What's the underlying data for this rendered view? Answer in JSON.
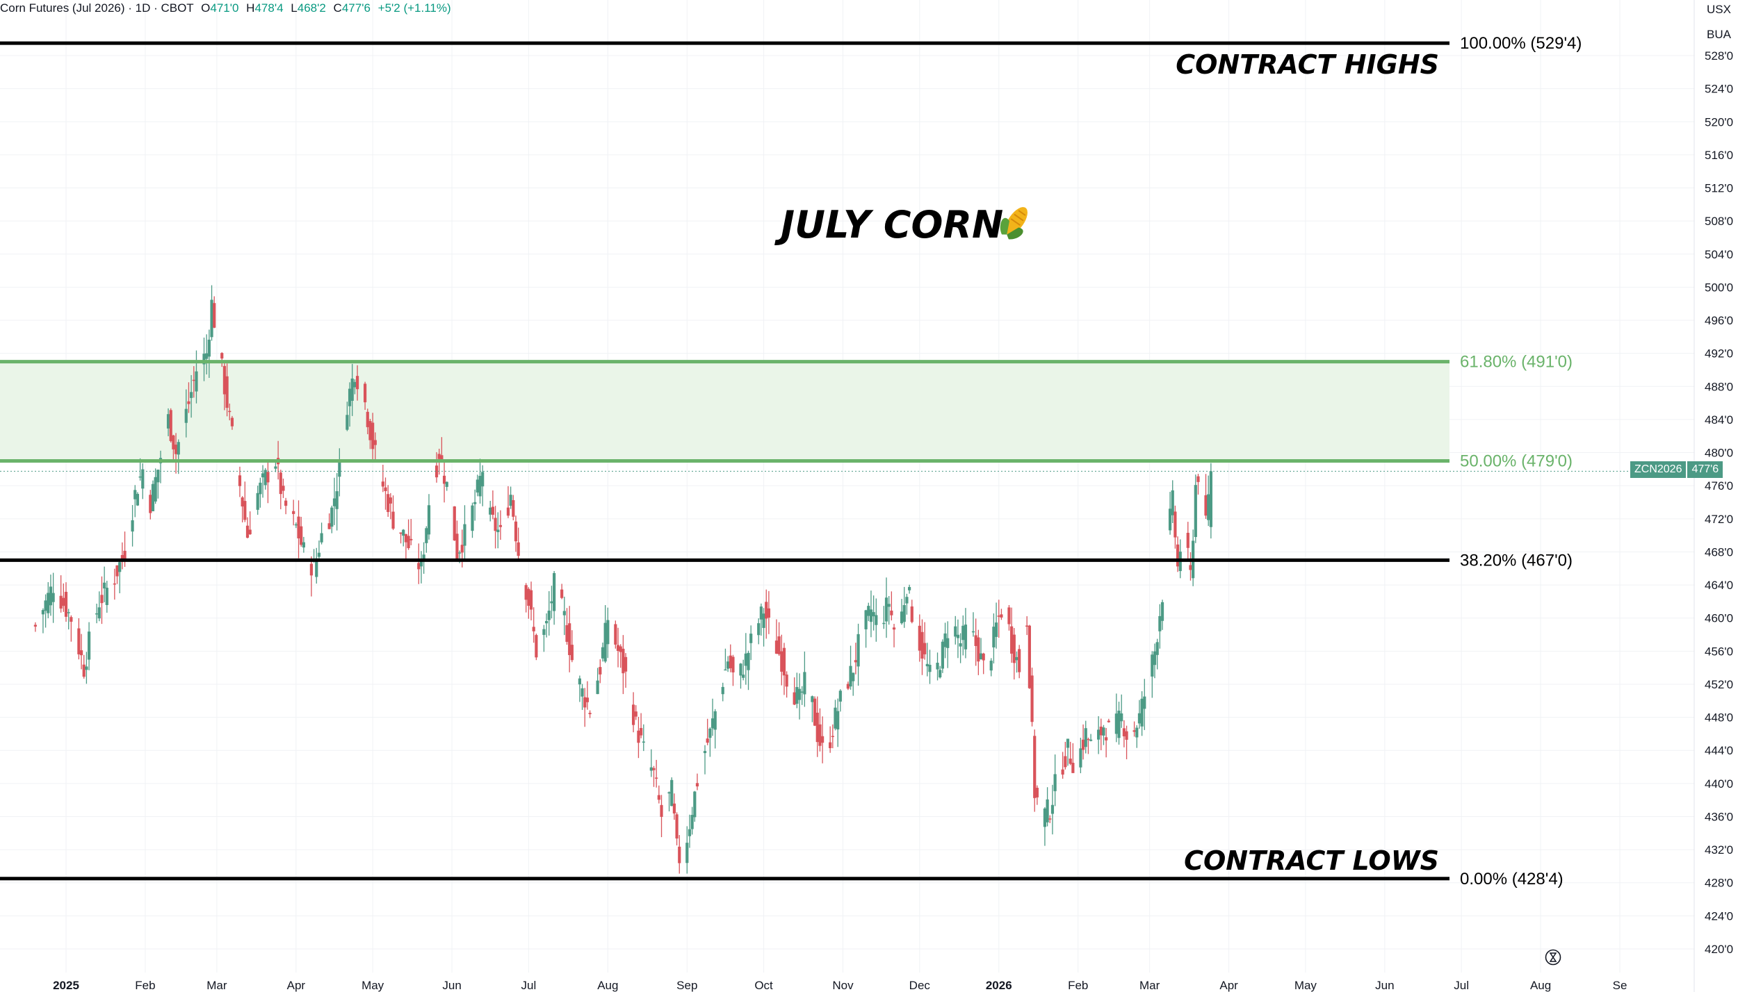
{
  "header": {
    "title": "Corn Futures (Jul 2026) · 1D · CBOT",
    "open_label": "O",
    "open": "471'0",
    "high_label": "H",
    "high": "478'4",
    "low_label": "L",
    "low": "468'2",
    "close_label": "C",
    "close": "477'6",
    "change": "+5'2 (+1.11%)"
  },
  "price_axis_units": [
    "USX",
    "BUA"
  ],
  "current_badge": {
    "symbol": "ZCN2026",
    "price": "477'6",
    "color": "#4c9a85"
  },
  "annotations": {
    "main_title": "JULY CORN",
    "main_title_icon": "corn-icon",
    "contract_highs": "CONTRACT HIGHS",
    "contract_lows": "CONTRACT LOWS"
  },
  "colors": {
    "up": "#4c9a85",
    "down": "#d9535a",
    "fib_green": "#6ab36a",
    "zone_fill": "#eaf5e8",
    "line_black": "#000000"
  },
  "chart_data": {
    "type": "candlestick",
    "y_unit": "cents/bushel",
    "ylim": [
      418,
      530
    ],
    "y_ticks": [
      "420'0",
      "424'0",
      "428'0",
      "432'0",
      "436'0",
      "440'0",
      "444'0",
      "448'0",
      "452'0",
      "456'0",
      "460'0",
      "464'0",
      "468'0",
      "472'0",
      "476'0",
      "480'0",
      "484'0",
      "488'0",
      "492'0",
      "496'0",
      "500'0",
      "504'0",
      "508'0",
      "512'0",
      "516'0",
      "520'0",
      "524'0",
      "528'0"
    ],
    "y_tick_values": [
      420,
      424,
      428,
      432,
      436,
      440,
      444,
      448,
      452,
      456,
      460,
      464,
      468,
      472,
      476,
      480,
      484,
      488,
      492,
      496,
      500,
      504,
      508,
      512,
      516,
      520,
      524,
      528
    ],
    "x_ticks": [
      "2025",
      "Feb",
      "Mar",
      "Apr",
      "May",
      "Jun",
      "Jul",
      "Aug",
      "Sep",
      "Oct",
      "Nov",
      "Dec",
      "2026",
      "Feb",
      "Mar",
      "Apr",
      "May",
      "Jun",
      "Jul",
      "Aug",
      "Se"
    ],
    "x_tick_dates": [
      "2025-01-01",
      "2025-02-01",
      "2025-03-01",
      "2025-04-01",
      "2025-05-01",
      "2025-06-01",
      "2025-07-01",
      "2025-08-01",
      "2025-09-01",
      "2025-10-01",
      "2025-11-01",
      "2025-12-01",
      "2026-01-01",
      "2026-02-01",
      "2026-03-01",
      "2026-04-01",
      "2026-05-01",
      "2026-06-01",
      "2026-07-01",
      "2026-08-01",
      "2026-09-01"
    ],
    "bold_x_ticks": [
      "2025",
      "2026"
    ],
    "fib_levels": [
      {
        "label": "100.00% (529'4)",
        "value": 529.5,
        "style": "black"
      },
      {
        "label": "61.80% (491'0)",
        "value": 491.0,
        "style": "green"
      },
      {
        "label": "50.00% (479'0)",
        "value": 479.0,
        "style": "green"
      },
      {
        "label": "38.20% (467'0)",
        "value": 467.0,
        "style": "black"
      },
      {
        "label": "0.00% (428'4)",
        "value": 428.5,
        "style": "black"
      }
    ],
    "shaded_zone": [
      479.0,
      491.0
    ],
    "last_price": 477.75,
    "price_path": [
      [
        "2024-12-20",
        459
      ],
      [
        "2024-12-27",
        464
      ],
      [
        "2025-01-03",
        460
      ],
      [
        "2025-01-08",
        454
      ],
      [
        "2025-01-10",
        457
      ],
      [
        "2025-01-14",
        462
      ],
      [
        "2025-01-20",
        465
      ],
      [
        "2025-01-24",
        468
      ],
      [
        "2025-01-28",
        475
      ],
      [
        "2025-01-31",
        478
      ],
      [
        "2025-02-03",
        474
      ],
      [
        "2025-02-06",
        478
      ],
      [
        "2025-02-10",
        484
      ],
      [
        "2025-02-13",
        480
      ],
      [
        "2025-02-18",
        486
      ],
      [
        "2025-02-21",
        490
      ],
      [
        "2025-02-25",
        492
      ],
      [
        "2025-02-27",
        498
      ],
      [
        "2025-03-03",
        490
      ],
      [
        "2025-03-06",
        484
      ],
      [
        "2025-03-10",
        476
      ],
      [
        "2025-03-13",
        470
      ],
      [
        "2025-03-17",
        475
      ],
      [
        "2025-03-20",
        477
      ],
      [
        "2025-03-24",
        479
      ],
      [
        "2025-03-27",
        474
      ],
      [
        "2025-04-01",
        471
      ],
      [
        "2025-04-04",
        468
      ],
      [
        "2025-04-08",
        466
      ],
      [
        "2025-04-11",
        470
      ],
      [
        "2025-04-15",
        473
      ],
      [
        "2025-04-18",
        478
      ],
      [
        "2025-04-21",
        486
      ],
      [
        "2025-04-24",
        490
      ],
      [
        "2025-04-28",
        486
      ],
      [
        "2025-05-01",
        481
      ],
      [
        "2025-05-05",
        476
      ],
      [
        "2025-05-09",
        472
      ],
      [
        "2025-05-13",
        470
      ],
      [
        "2025-05-16",
        468
      ],
      [
        "2025-05-20",
        466
      ],
      [
        "2025-05-23",
        474
      ],
      [
        "2025-05-27",
        480
      ],
      [
        "2025-05-30",
        476
      ],
      [
        "2025-06-03",
        468
      ],
      [
        "2025-06-06",
        470
      ],
      [
        "2025-06-10",
        474
      ],
      [
        "2025-06-13",
        478
      ],
      [
        "2025-06-16",
        472
      ],
      [
        "2025-06-20",
        470
      ],
      [
        "2025-06-24",
        475
      ],
      [
        "2025-06-27",
        468
      ],
      [
        "2025-07-01",
        462
      ],
      [
        "2025-07-04",
        456
      ],
      [
        "2025-07-08",
        459
      ],
      [
        "2025-07-11",
        464
      ],
      [
        "2025-07-15",
        460
      ],
      [
        "2025-07-18",
        455
      ],
      [
        "2025-07-22",
        451
      ],
      [
        "2025-07-25",
        449
      ],
      [
        "2025-07-29",
        454
      ],
      [
        "2025-08-01",
        460
      ],
      [
        "2025-08-05",
        456
      ],
      [
        "2025-08-08",
        453
      ],
      [
        "2025-08-12",
        447
      ],
      [
        "2025-08-15",
        444
      ],
      [
        "2025-08-19",
        441
      ],
      [
        "2025-08-22",
        436
      ],
      [
        "2025-08-26",
        439
      ],
      [
        "2025-08-28",
        432
      ],
      [
        "2025-08-30",
        430
      ],
      [
        "2025-09-03",
        437
      ],
      [
        "2025-09-06",
        442
      ],
      [
        "2025-09-10",
        446
      ],
      [
        "2025-09-13",
        450
      ],
      [
        "2025-09-17",
        455
      ],
      [
        "2025-09-20",
        452
      ],
      [
        "2025-09-24",
        455
      ],
      [
        "2025-09-27",
        458
      ],
      [
        "2025-10-01",
        461
      ],
      [
        "2025-10-04",
        458
      ],
      [
        "2025-10-08",
        455
      ],
      [
        "2025-10-11",
        452
      ],
      [
        "2025-10-15",
        450
      ],
      [
        "2025-10-18",
        453
      ],
      [
        "2025-10-22",
        446
      ],
      [
        "2025-10-25",
        443
      ],
      [
        "2025-10-29",
        448
      ],
      [
        "2025-11-01",
        451
      ],
      [
        "2025-11-05",
        454
      ],
      [
        "2025-11-08",
        458
      ],
      [
        "2025-11-12",
        461
      ],
      [
        "2025-11-15",
        459
      ],
      [
        "2025-11-19",
        462
      ],
      [
        "2025-11-22",
        457
      ],
      [
        "2025-11-26",
        464
      ],
      [
        "2025-11-29",
        459
      ],
      [
        "2025-12-03",
        455
      ],
      [
        "2025-12-06",
        452
      ],
      [
        "2025-12-10",
        456
      ],
      [
        "2025-12-13",
        460
      ],
      [
        "2025-12-17",
        457
      ],
      [
        "2025-12-20",
        459
      ],
      [
        "2025-12-24",
        456
      ],
      [
        "2025-12-27",
        453
      ],
      [
        "2025-12-31",
        459
      ],
      [
        "2026-01-03",
        462
      ],
      [
        "2026-01-06",
        457
      ],
      [
        "2026-01-09",
        454
      ],
      [
        "2026-01-12",
        460
      ],
      [
        "2026-01-15",
        439
      ],
      [
        "2026-01-18",
        436
      ],
      [
        "2026-01-21",
        437
      ],
      [
        "2026-01-24",
        441
      ],
      [
        "2026-01-28",
        444
      ],
      [
        "2026-01-31",
        442
      ],
      [
        "2026-02-04",
        446
      ],
      [
        "2026-02-07",
        444
      ],
      [
        "2026-02-11",
        447
      ],
      [
        "2026-02-14",
        446
      ],
      [
        "2026-02-18",
        448
      ],
      [
        "2026-02-21",
        445
      ],
      [
        "2026-02-25",
        448
      ],
      [
        "2026-02-28",
        452
      ],
      [
        "2026-03-03",
        456
      ],
      [
        "2026-03-06",
        463
      ],
      [
        "2026-03-08",
        470
      ],
      [
        "2026-03-10",
        474
      ],
      [
        "2026-03-12",
        466
      ],
      [
        "2026-03-14",
        471
      ],
      [
        "2026-03-17",
        465
      ],
      [
        "2026-03-19",
        476
      ],
      [
        "2026-03-21",
        479
      ],
      [
        "2026-03-23",
        471
      ],
      [
        "2026-03-25",
        477.75
      ]
    ]
  }
}
